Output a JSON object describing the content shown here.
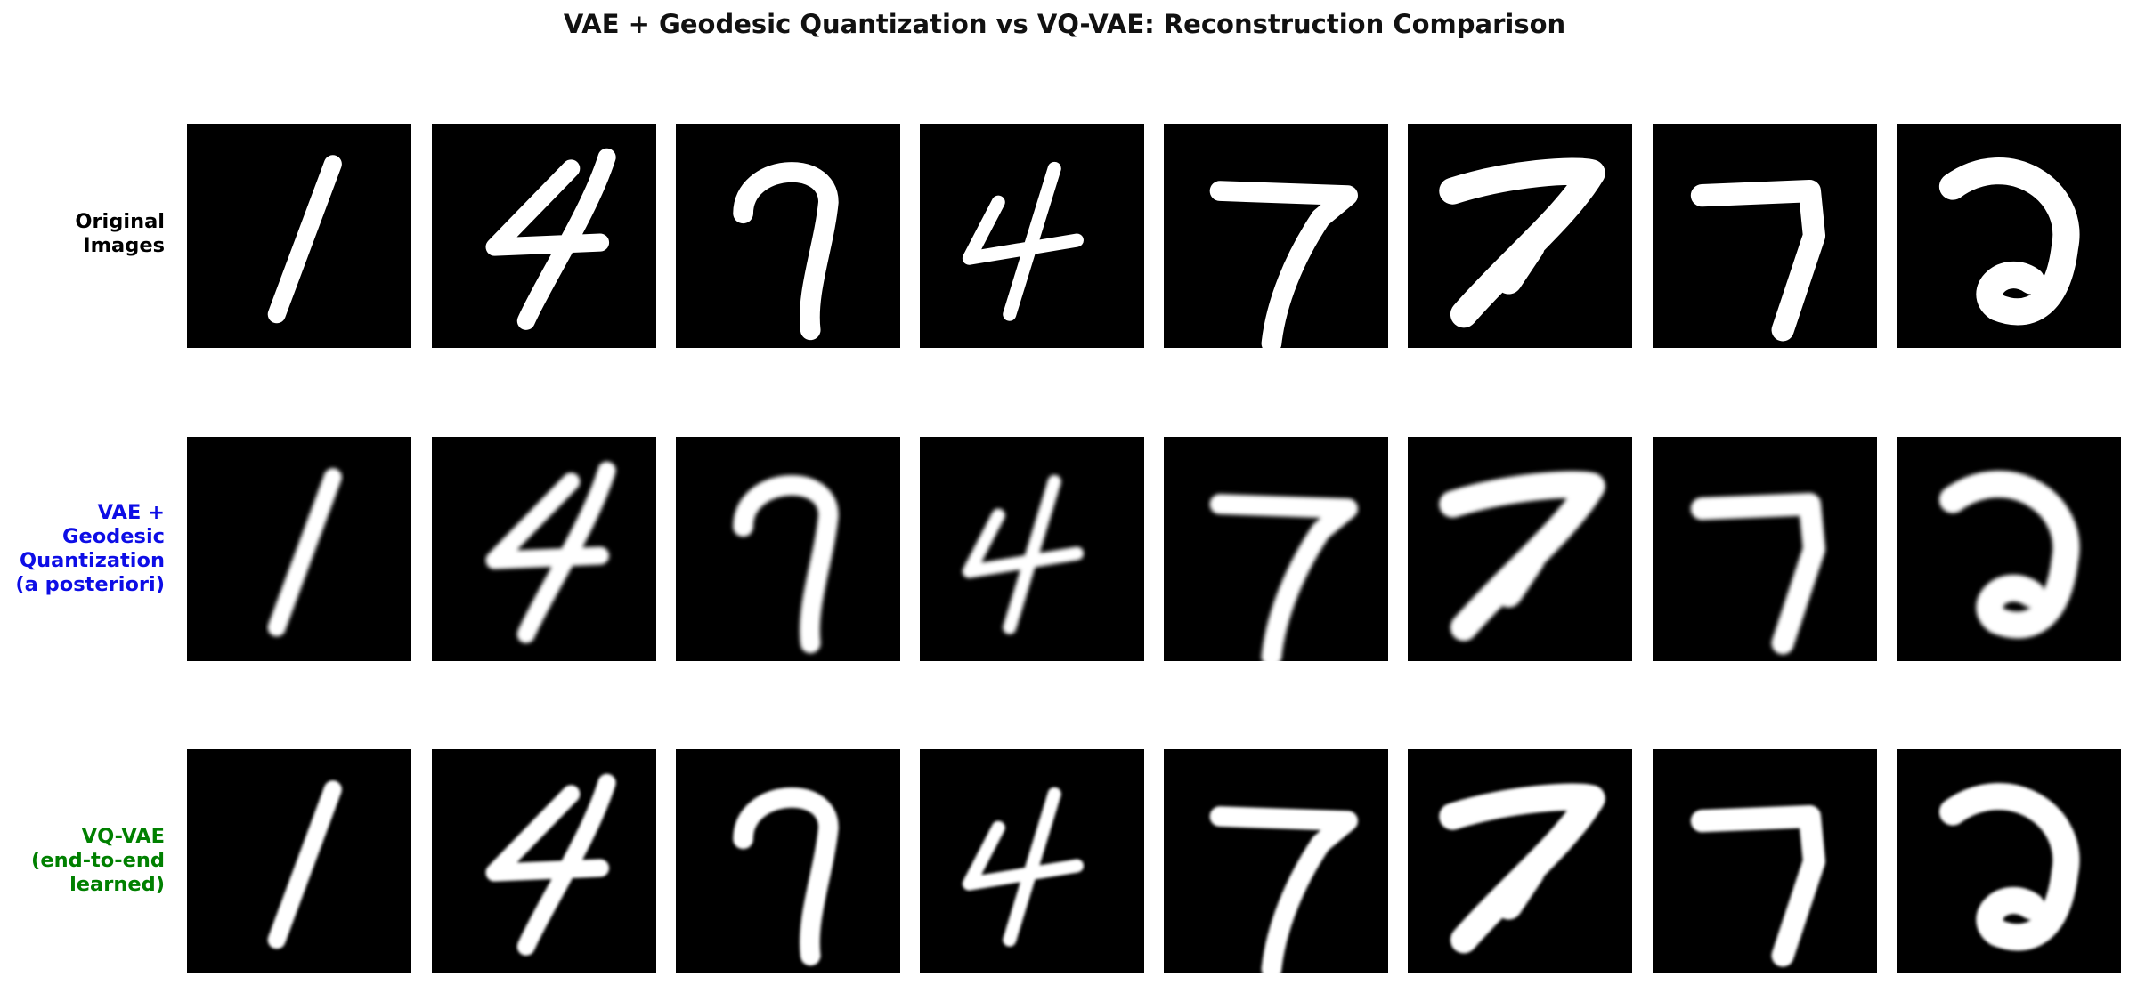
{
  "title": "VAE + Geodesic Quantization vs VQ-VAE: Reconstruction Comparison",
  "rows": [
    {
      "label": "Original\nImages",
      "color": "#000000",
      "blur": 0.15
    },
    {
      "label": "VAE +\nGeodesic\nQuantization\n(a posteriori)",
      "color": "#0d0de6",
      "blur": 1.0
    },
    {
      "label": "VQ-VAE\n(end-to-end\nlearned)",
      "color": "#008000",
      "blur": 0.6
    }
  ],
  "digits": [
    "1",
    "4",
    "7",
    "4",
    "7",
    "7",
    "7",
    "2"
  ]
}
